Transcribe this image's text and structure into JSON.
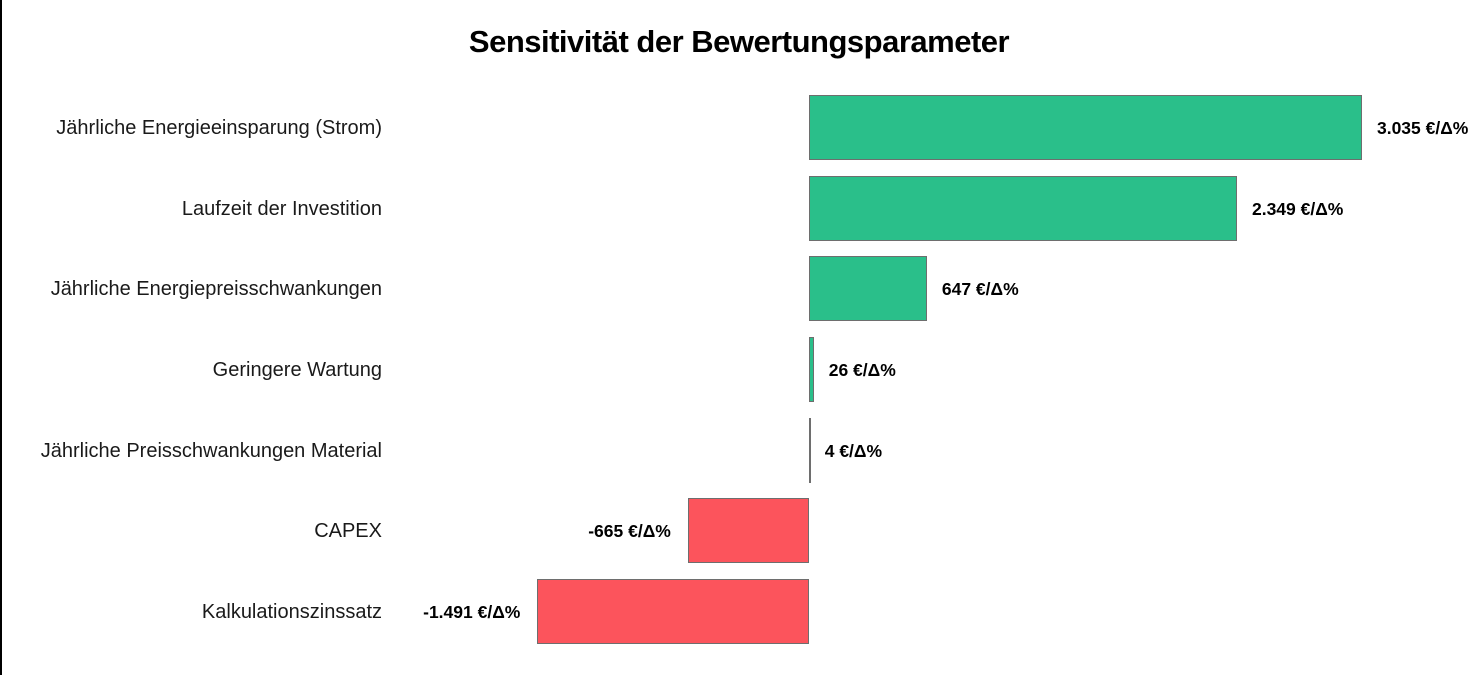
{
  "title": "Sensitivität der Bewertungsparameter",
  "chart_data": {
    "type": "bar",
    "orientation": "horizontal",
    "title": "Sensitivität der Bewertungsparameter",
    "unit": "€/Δ%",
    "categories": [
      "Jährliche Energieeinsparung (Strom)",
      "Laufzeit der Investition",
      "Jährliche Energiepreisschwankungen",
      "Geringere Wartung",
      "Jährliche Preisschwankungen Material",
      "CAPEX",
      "Kalkulationszinssatz"
    ],
    "values": [
      3035,
      2349,
      647,
      26,
      4,
      -665,
      -1491
    ],
    "value_labels": [
      "3.035 €/Δ%",
      "2.349 €/Δ%",
      "647 €/Δ%",
      "26 €/Δ%",
      "4 €/Δ%",
      "-665 €/Δ%",
      "-1.491 €/Δ%"
    ],
    "baseline_x_value": 0,
    "xlim": [
      -1650,
      3670
    ],
    "legend": "none",
    "grid": "off",
    "colors": {
      "positive": "#2ABF8A",
      "negative": "#FC545C",
      "bar_border": "#6E6E6E",
      "text": "#000000",
      "background": "#FFFFFF"
    }
  }
}
